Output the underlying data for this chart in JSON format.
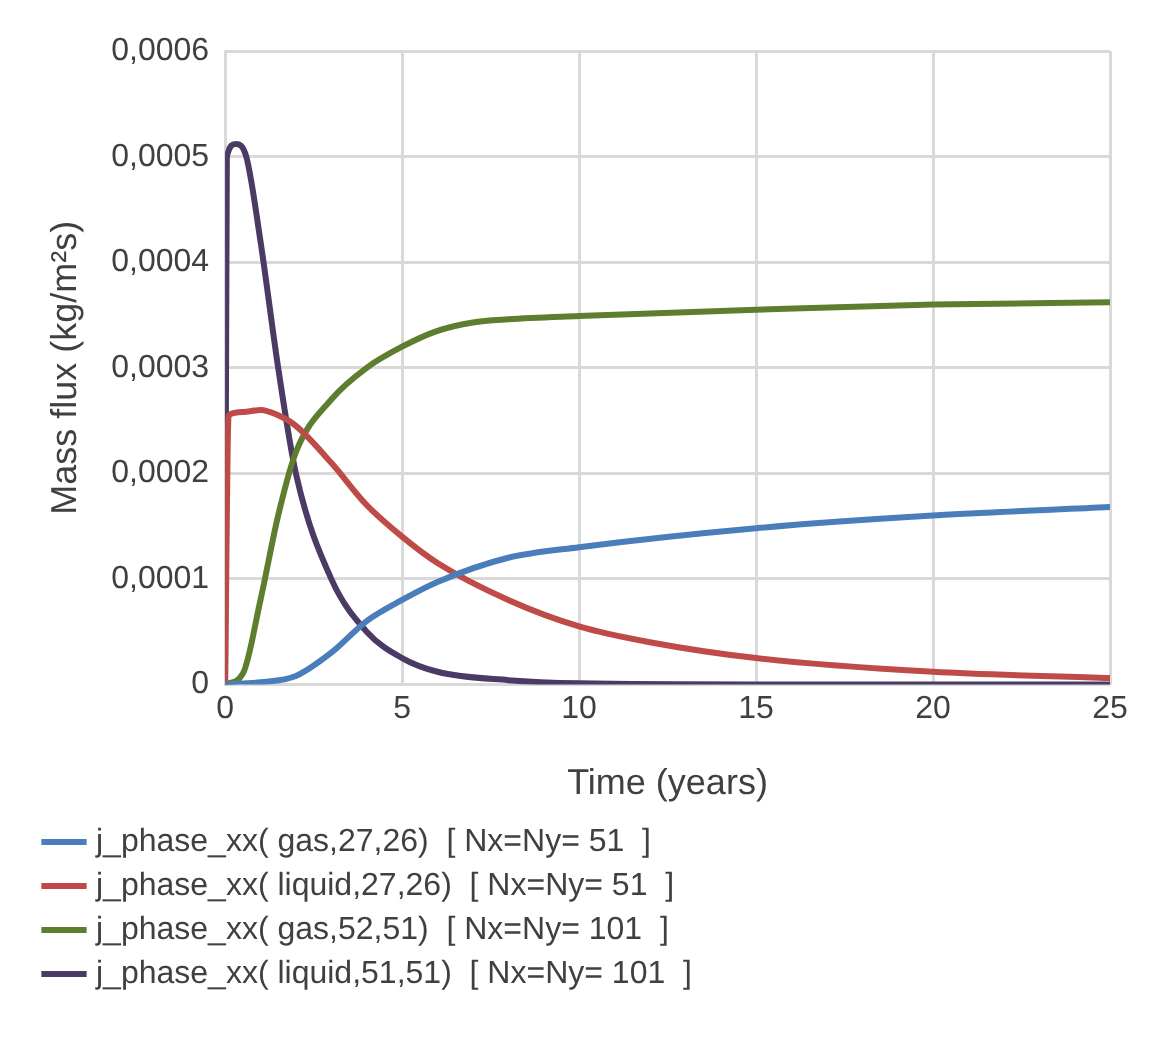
{
  "chart_data": {
    "type": "line",
    "xlabel": "Time (years)",
    "ylabel": "Mass flux (kg/m²s)",
    "xlim": [
      0,
      25
    ],
    "xticks": [
      0,
      5,
      10,
      15,
      20,
      25
    ],
    "ylim": [
      0,
      0.0006
    ],
    "yticks": [
      {
        "value": 0,
        "label": "0"
      },
      {
        "value": 0.0001,
        "label": "0,0001"
      },
      {
        "value": 0.0002,
        "label": "0,0002"
      },
      {
        "value": 0.0003,
        "label": "0,0003"
      },
      {
        "value": 0.0004,
        "label": "0,0004"
      },
      {
        "value": 0.0005,
        "label": "0,0005"
      },
      {
        "value": 0.0006,
        "label": "0,0006"
      }
    ],
    "grid": true,
    "legend": "bottom",
    "marker": "none",
    "line_style": "solid",
    "series": [
      {
        "name": "j_phase_xx( gas,27,26)  [ Nx=Ny= 51  ]",
        "color": "#4a7ebb",
        "x": [
          0,
          1,
          2,
          3,
          4,
          5,
          6,
          8,
          10,
          15,
          20,
          25
        ],
        "values": [
          0,
          2e-06,
          8e-06,
          3e-05,
          6e-05,
          8e-05,
          9.7e-05,
          0.00012,
          0.00013,
          0.000148,
          0.00016,
          0.000168
        ]
      },
      {
        "name": "j_phase_xx( liquid,27,26)  [ Nx=Ny= 51  ]",
        "color": "#be4b48",
        "x": [
          0,
          0.1,
          0.5,
          1,
          1.5,
          2,
          3,
          4,
          5,
          6,
          8,
          10,
          12,
          15,
          20,
          25
        ],
        "values": [
          0,
          0.000255,
          0.000258,
          0.00026,
          0.000255,
          0.000245,
          0.00021,
          0.00017,
          0.00014,
          0.000115,
          8e-05,
          5.5e-05,
          4e-05,
          2.5e-05,
          1.2e-05,
          6e-06
        ]
      },
      {
        "name": "j_phase_xx( gas,52,51)  [ Nx=Ny= 101  ]",
        "color": "#5f7d2e",
        "x": [
          0,
          0.5,
          1,
          1.5,
          2,
          3,
          4,
          5,
          6,
          7,
          8,
          10,
          15,
          20,
          25
        ],
        "values": [
          0,
          1e-05,
          8e-05,
          0.00016,
          0.00022,
          0.00027,
          0.0003,
          0.00032,
          0.000335,
          0.000343,
          0.000346,
          0.000349,
          0.000355,
          0.00036,
          0.000362
        ]
      },
      {
        "name": "j_phase_xx( liquid,51,51)  [ Nx=Ny= 101  ]",
        "color": "#4b3a63",
        "x": [
          0,
          0.05,
          0.3,
          0.6,
          1,
          1.5,
          2,
          3,
          4,
          5,
          6,
          8,
          10,
          15,
          25
        ],
        "values": [
          0,
          0.0005,
          0.000512,
          0.0005,
          0.00042,
          0.0003,
          0.0002,
          0.0001,
          5e-05,
          2.5e-05,
          1.2e-05,
          4e-06,
          1e-06,
          0,
          0
        ]
      }
    ]
  }
}
